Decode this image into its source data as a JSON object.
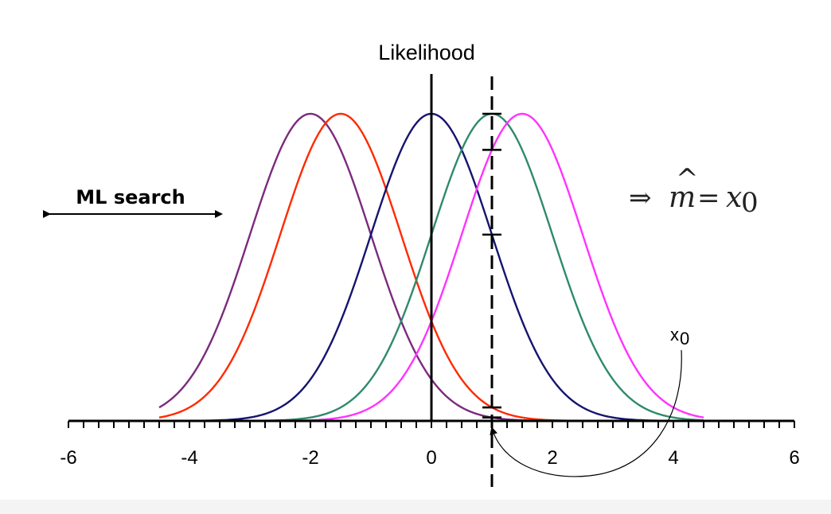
{
  "chart_data": {
    "type": "line",
    "title": "Likelihood",
    "xlabel": "",
    "ylabel": "",
    "xlim": [
      -6,
      6
    ],
    "ylim": [
      0,
      1
    ],
    "xticks": [
      -6,
      -4,
      -2,
      0,
      2,
      4,
      6
    ],
    "xtick_labels": [
      "-6",
      "-4",
      "-2",
      "0",
      "2",
      "4",
      "6"
    ],
    "minor_xtick_step": 0.25,
    "grid": false,
    "x_range_drawn": [
      -4.5,
      4.5
    ],
    "sigma": 1,
    "series": [
      {
        "mean": -2,
        "color": "#7b2a7e"
      },
      {
        "mean": -1.5,
        "color": "#ff2a00"
      },
      {
        "mean": 0,
        "color": "#14146e"
      },
      {
        "mean": 1,
        "color": "#2f8a6a"
      },
      {
        "mean": 1.5,
        "color": "#ff33ff"
      }
    ],
    "observation": {
      "x": 1,
      "line_style": "dashed",
      "tick_series_index": [
        0,
        1,
        2,
        3,
        4
      ]
    },
    "annotations": {
      "search_label": "ML search",
      "formula_implies": "⇒",
      "formula_m": "m",
      "formula_hat": "^",
      "formula_eq": "=",
      "formula_x": "x",
      "formula_sub": "0",
      "x0_label": "x",
      "x0_sub": "0"
    }
  }
}
